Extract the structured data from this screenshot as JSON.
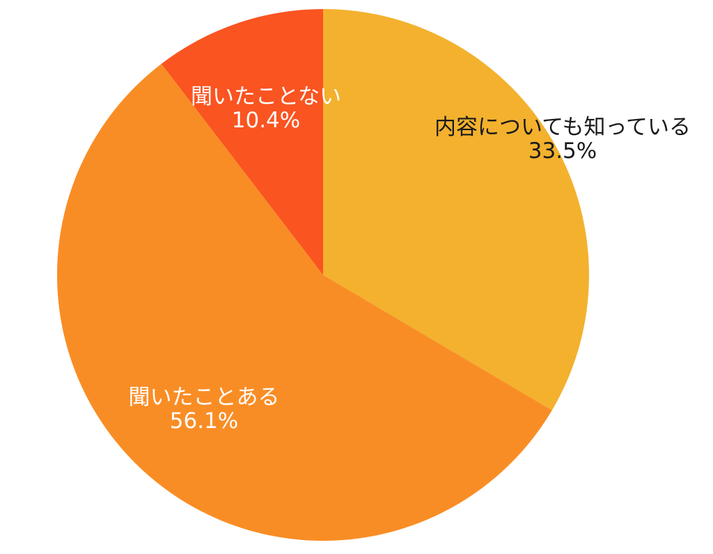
{
  "chart_data": {
    "type": "pie",
    "slices": [
      {
        "label": "内容についても知っている",
        "value": 33.5,
        "value_label": "33.5%",
        "color": "#F3B12E",
        "label_color": "#1a1a1a"
      },
      {
        "label": "聞いたことある",
        "value": 56.1,
        "value_label": "56.1%",
        "color": "#F98D25",
        "label_color": "#ffffff"
      },
      {
        "label": "聞いたことない",
        "value": 10.4,
        "value_label": "10.4%",
        "color": "#FA5421",
        "label_color": "#ffffff"
      }
    ],
    "start_angle": "top (12 o'clock)",
    "direction": "clockwise"
  }
}
